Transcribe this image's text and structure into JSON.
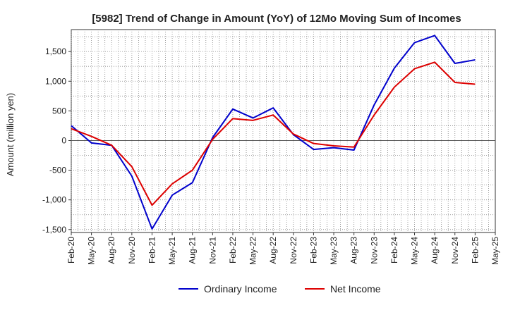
{
  "chart_data": {
    "type": "line",
    "title": "[5982]  Trend of Change in Amount (YoY) of 12Mo Moving Sum of Incomes",
    "ylabel": "Amount (million yen)",
    "xlabel": "",
    "ylim": [
      -1550,
      1870
    ],
    "yticks": [
      -1500,
      -1000,
      -500,
      0,
      500,
      1000,
      1500
    ],
    "ytick_labels": [
      "-1,500",
      "-1,000",
      "-500",
      "0",
      "500",
      "1,000",
      "1,500"
    ],
    "categories": [
      "Feb-20",
      "May-20",
      "Aug-20",
      "Nov-20",
      "Feb-21",
      "May-21",
      "Aug-21",
      "Nov-21",
      "Feb-22",
      "May-22",
      "Aug-22",
      "Nov-22",
      "Feb-23",
      "May-23",
      "Aug-23",
      "Nov-23",
      "Feb-24",
      "May-24",
      "Aug-24",
      "Nov-24",
      "Feb-25",
      "May-25"
    ],
    "grid": true,
    "legend_position": "bottom",
    "series": [
      {
        "name": "Ordinary Income",
        "color": "#0000cc",
        "values": [
          250,
          -40,
          -80,
          -600,
          -1490,
          -920,
          -710,
          50,
          530,
          380,
          550,
          100,
          -150,
          -120,
          -160,
          600,
          1220,
          1650,
          1770,
          1300,
          1360,
          null
        ]
      },
      {
        "name": "Net Income",
        "color": "#dd0000",
        "values": [
          200,
          70,
          -80,
          -440,
          -1090,
          -730,
          -500,
          20,
          370,
          340,
          430,
          110,
          -50,
          -90,
          -110,
          430,
          900,
          1210,
          1320,
          980,
          950,
          null
        ]
      }
    ]
  }
}
